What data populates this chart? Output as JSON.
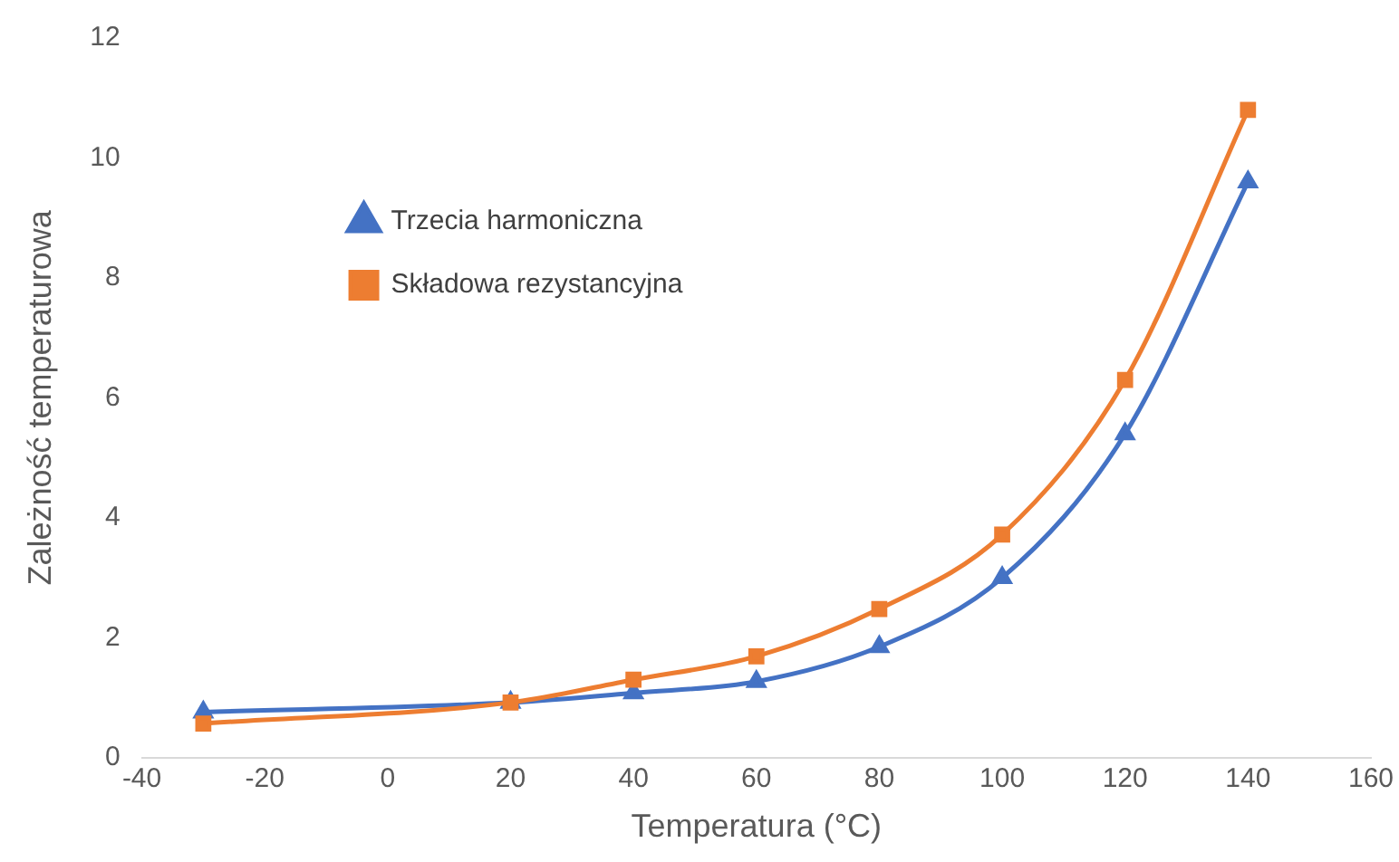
{
  "chart_data": {
    "type": "line",
    "xlabel": "Temperatura (°C)",
    "ylabel": "Zależność temperaturowa",
    "x": [
      -30,
      20,
      40,
      60,
      80,
      100,
      120,
      140
    ],
    "series": [
      {
        "name": "Trzecia harmoniczna",
        "color": "#4472c4",
        "marker": "triangle",
        "values": [
          0.76,
          0.92,
          1.08,
          1.27,
          1.85,
          3.0,
          5.4,
          9.6
        ]
      },
      {
        "name": "Składowa rezystancyjna",
        "color": "#ed7d31",
        "marker": "square",
        "values": [
          0.57,
          0.92,
          1.3,
          1.69,
          2.48,
          3.72,
          6.3,
          10.8
        ]
      }
    ],
    "xlim": [
      -40,
      160
    ],
    "xticks": [
      -40,
      -20,
      0,
      20,
      40,
      60,
      80,
      100,
      120,
      140,
      160
    ],
    "ylim": [
      0,
      12
    ],
    "yticks": [
      0,
      2,
      4,
      6,
      8,
      10,
      12
    ],
    "grid": false,
    "legend": "top left",
    "line_style": "solid"
  }
}
